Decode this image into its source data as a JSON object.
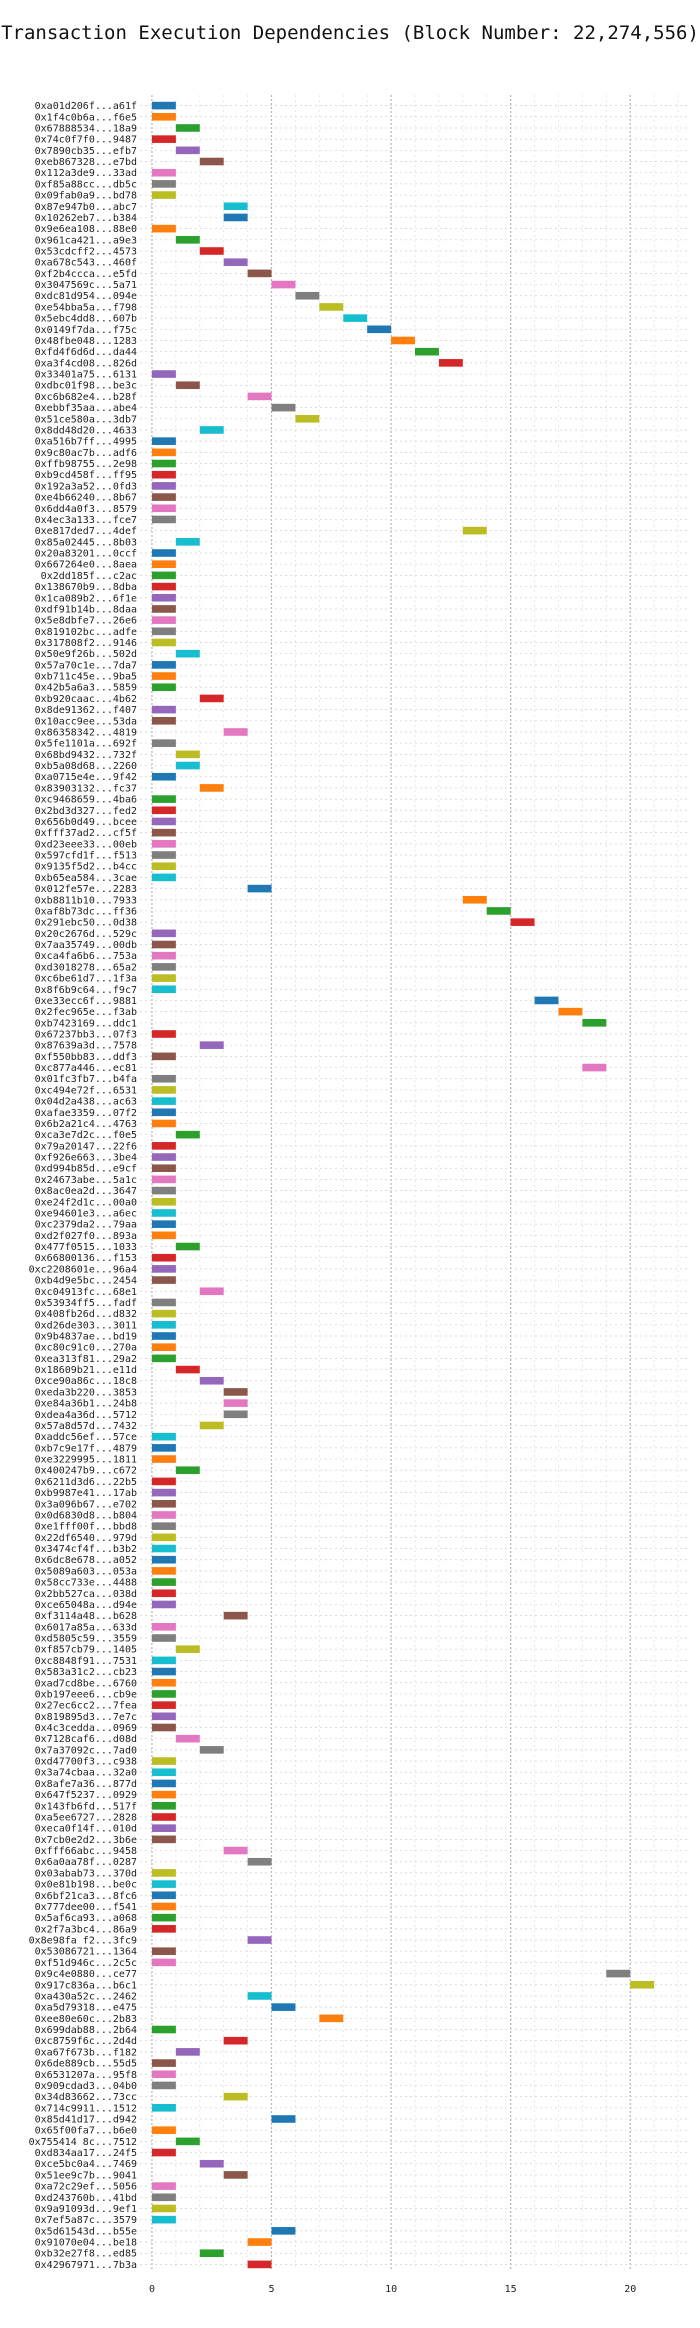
{
  "chart_data": {
    "type": "bar",
    "orientation": "horizontal-gantt",
    "title": "Transaction Execution Dependencies (Block Number: 22,274,556)",
    "xlim": [
      -0.5,
      22.5
    ],
    "xticks": [
      0,
      5,
      10,
      15,
      20
    ],
    "grid": true,
    "colors": [
      "#1f77b4",
      "#ff7f0e",
      "#2ca02c",
      "#d62728",
      "#9467bd",
      "#8c564b",
      "#e377c2",
      "#7f7f7f",
      "#bcbd22",
      "#17becf"
    ],
    "transactions": [
      {
        "label": "0xa01d206f...a61f",
        "start": 0
      },
      {
        "label": "0x1f4c0b6a...f6e5",
        "start": 0
      },
      {
        "label": "0x67888534...18a9",
        "start": 1
      },
      {
        "label": "0x74c0f7f0...9487",
        "start": 0
      },
      {
        "label": "0x7890cb35...efb7",
        "start": 1
      },
      {
        "label": "0xeb867328...e7bd",
        "start": 2
      },
      {
        "label": "0x112a3de9...33ad",
        "start": 0
      },
      {
        "label": "0xf85a88cc...db5c",
        "start": 0
      },
      {
        "label": "0x09fab0a9...bd78",
        "start": 0
      },
      {
        "label": "0x87e947b0...abc7",
        "start": 3
      },
      {
        "label": "0x10262eb7...b384",
        "start": 3
      },
      {
        "label": "0x9e6ea108...88e0",
        "start": 0
      },
      {
        "label": "0x961ca421...a9e3",
        "start": 1
      },
      {
        "label": "0x53cdcff2...4573",
        "start": 2
      },
      {
        "label": "0xa678c543...460f",
        "start": 3
      },
      {
        "label": "0xf2b4ccca...e5fd",
        "start": 4
      },
      {
        "label": "0x3047569c...5a71",
        "start": 5
      },
      {
        "label": "0xdc81d954...094e",
        "start": 6
      },
      {
        "label": "0xe54bba5a...f798",
        "start": 7
      },
      {
        "label": "0x5ebc4dd8...607b",
        "start": 8
      },
      {
        "label": "0x0149f7da...f75c",
        "start": 9
      },
      {
        "label": "0x48fbe048...1283",
        "start": 10
      },
      {
        "label": "0xfd4f6d6d...da44",
        "start": 11
      },
      {
        "label": "0xa3f4cd08...826d",
        "start": 12
      },
      {
        "label": "0x33401a75...6131",
        "start": 0
      },
      {
        "label": "0xdbc01f98...be3c",
        "start": 1
      },
      {
        "label": "0xc6b682e4...b28f",
        "start": 4
      },
      {
        "label": "0xebbf35aa...abe4",
        "start": 5
      },
      {
        "label": "0x51ce580a...3db7",
        "start": 6
      },
      {
        "label": "0x8dd48d20...4633",
        "start": 2
      },
      {
        "label": "0xa516b7ff...4995",
        "start": 0
      },
      {
        "label": "0x9c80ac7b...adf6",
        "start": 0
      },
      {
        "label": "0xffb98755...2e98",
        "start": 0
      },
      {
        "label": "0xb9cd458f...ff95",
        "start": 0
      },
      {
        "label": "0x192a3a52...0fd3",
        "start": 0
      },
      {
        "label": "0xe4b66240...8b67",
        "start": 0
      },
      {
        "label": "0x6dd4a0f3...8579",
        "start": 0
      },
      {
        "label": "0x4ec3a133...fce7",
        "start": 0
      },
      {
        "label": "0xe817ded7...4def",
        "start": 13
      },
      {
        "label": "0x85a02445...8b03",
        "start": 1
      },
      {
        "label": "0x20a83201...0ccf",
        "start": 0
      },
      {
        "label": "0x667264e0...8aea",
        "start": 0
      },
      {
        "label": "0x2dd185f...c2ac",
        "start": 0
      },
      {
        "label": "0x138670b9...8dba",
        "start": 0
      },
      {
        "label": "0x1ca089b2...6f1e",
        "start": 0
      },
      {
        "label": "0xdf91b14b...8daa",
        "start": 0
      },
      {
        "label": "0x5e8dbfe7...26e6",
        "start": 0
      },
      {
        "label": "0x819102bc...adfe",
        "start": 0
      },
      {
        "label": "0x317808f2...9146",
        "start": 0
      },
      {
        "label": "0x50e9f26b...502d",
        "start": 1
      },
      {
        "label": "0x57a70c1e...7da7",
        "start": 0
      },
      {
        "label": "0xb711c45e...9ba5",
        "start": 0
      },
      {
        "label": "0x42b5a6a3...5859",
        "start": 0
      },
      {
        "label": "0xb920caac...4b62",
        "start": 2
      },
      {
        "label": "0x8de91362...f407",
        "start": 0
      },
      {
        "label": "0x10acc9ee...53da",
        "start": 0
      },
      {
        "label": "0x86358342...4819",
        "start": 3
      },
      {
        "label": "0x5fe1101a...692f",
        "start": 0
      },
      {
        "label": "0x68bd9432...732f",
        "start": 1
      },
      {
        "label": "0xb5a08d68...2260",
        "start": 1
      },
      {
        "label": "0xa0715e4e...9f42",
        "start": 0
      },
      {
        "label": "0x83903132...fc37",
        "start": 2
      },
      {
        "label": "0xc9468659...4ba6",
        "start": 0
      },
      {
        "label": "0x2bd3d327...fed2",
        "start": 0
      },
      {
        "label": "0x656b0d49...bcee",
        "start": 0
      },
      {
        "label": "0xfff37ad2...cf5f",
        "start": 0
      },
      {
        "label": "0xd23eee33...00eb",
        "start": 0
      },
      {
        "label": "0x597cfd1f...f513",
        "start": 0
      },
      {
        "label": "0x9135f5d2...b4cc",
        "start": 0
      },
      {
        "label": "0xb65ea584...3cae",
        "start": 0
      },
      {
        "label": "0x012fe57e...2283",
        "start": 4
      },
      {
        "label": "0xb8811b10...7933",
        "start": 13
      },
      {
        "label": "0xaf8b73dc...ff36",
        "start": 14
      },
      {
        "label": "0x291ebc50...0d38",
        "start": 15
      },
      {
        "label": "0x20c2676d...529c",
        "start": 0
      },
      {
        "label": "0x7aa35749...00db",
        "start": 0
      },
      {
        "label": "0xca4fa6b6...753a",
        "start": 0
      },
      {
        "label": "0xd3018278...65a2",
        "start": 0
      },
      {
        "label": "0xc6be61d7...1f3a",
        "start": 0
      },
      {
        "label": "0x8f6b9c64...f9c7",
        "start": 0
      },
      {
        "label": "0xe33ecc6f...9881",
        "start": 16
      },
      {
        "label": "0x2fec965e...f3ab",
        "start": 17
      },
      {
        "label": "0xb7423169...ddc1",
        "start": 18
      },
      {
        "label": "0x67237bb3...07f3",
        "start": 0
      },
      {
        "label": "0x87639a3d...7578",
        "start": 2
      },
      {
        "label": "0xf550bb83...ddf3",
        "start": 0
      },
      {
        "label": "0xc877a446...ec81",
        "start": 18
      },
      {
        "label": "0x01fc3fb7...b4fa",
        "start": 0
      },
      {
        "label": "0xc494e72f...6531",
        "start": 0
      },
      {
        "label": "0x04d2a438...ac63",
        "start": 0
      },
      {
        "label": "0xafae3359...07f2",
        "start": 0
      },
      {
        "label": "0x6b2a21c4...4763",
        "start": 0
      },
      {
        "label": "0xca3e7d2c...f0e5",
        "start": 1
      },
      {
        "label": "0x79a20147...22f6",
        "start": 0
      },
      {
        "label": "0xf926e663...3be4",
        "start": 0
      },
      {
        "label": "0xd994b85d...e9cf",
        "start": 0
      },
      {
        "label": "0x24673abe...5a1c",
        "start": 0
      },
      {
        "label": "0x8ac0ea2d...3647",
        "start": 0
      },
      {
        "label": "0xe24f2d1c...00a0",
        "start": 0
      },
      {
        "label": "0xe94601e3...a6ec",
        "start": 0
      },
      {
        "label": "0xc2379da2...79aa",
        "start": 0
      },
      {
        "label": "0xd2f027f0...893a",
        "start": 0
      },
      {
        "label": "0x477f0515...1033",
        "start": 1
      },
      {
        "label": "0x66800136...f153",
        "start": 0
      },
      {
        "label": "0xc2208601e...96a4",
        "start": 0
      },
      {
        "label": "0xb4d9e5bc...2454",
        "start": 0
      },
      {
        "label": "0xc04913fc...68e1",
        "start": 2
      },
      {
        "label": "0x53934ff5...fadf",
        "start": 0
      },
      {
        "label": "0x408fb26d...d832",
        "start": 0
      },
      {
        "label": "0xd26de303...3011",
        "start": 0
      },
      {
        "label": "0x9b4837ae...bd19",
        "start": 0
      },
      {
        "label": "0xc80c91c0...270a",
        "start": 0
      },
      {
        "label": "0xea313f81...29a2",
        "start": 0
      },
      {
        "label": "0x18609b21...e11d",
        "start": 1
      },
      {
        "label": "0xce90a86c...18c8",
        "start": 2
      },
      {
        "label": "0xeda3b220...3853",
        "start": 3
      },
      {
        "label": "0xe84a36b1...24b8",
        "start": 3
      },
      {
        "label": "0xdea4a36d...5712",
        "start": 3
      },
      {
        "label": "0x57a8d57d...7432",
        "start": 2
      },
      {
        "label": "0xaddc56ef...57ce",
        "start": 0
      },
      {
        "label": "0xb7c9e17f...4879",
        "start": 0
      },
      {
        "label": "0xe3229995...1811",
        "start": 0
      },
      {
        "label": "0x400247b9...c672",
        "start": 1
      },
      {
        "label": "0x6211d3d6...22b5",
        "start": 0
      },
      {
        "label": "0xb9987e41...17ab",
        "start": 0
      },
      {
        "label": "0x3a096b67...e702",
        "start": 0
      },
      {
        "label": "0x0d6830d8...b804",
        "start": 0
      },
      {
        "label": "0xe1fff00f...bbd8",
        "start": 0
      },
      {
        "label": "0x22df6540...979d",
        "start": 0
      },
      {
        "label": "0x3474cf4f...b3b2",
        "start": 0
      },
      {
        "label": "0x6dc8e678...a052",
        "start": 0
      },
      {
        "label": "0x5089a603...053a",
        "start": 0
      },
      {
        "label": "0x58cc733e...4488",
        "start": 0
      },
      {
        "label": "0x2bb527ca...038d",
        "start": 0
      },
      {
        "label": "0xce65048a...d94e",
        "start": 0
      },
      {
        "label": "0xf3114a48...b628",
        "start": 3
      },
      {
        "label": "0x6017a85a...633d",
        "start": 0
      },
      {
        "label": "0xd5805c59...3559",
        "start": 0
      },
      {
        "label": "0xf857cb79...1405",
        "start": 1
      },
      {
        "label": "0xc8848f91...7531",
        "start": 0
      },
      {
        "label": "0x583a31c2...cb23",
        "start": 0
      },
      {
        "label": "0xad7cd8be...6760",
        "start": 0
      },
      {
        "label": "0xb197eee6...cb9e",
        "start": 0
      },
      {
        "label": "0x27ec6cc2...7fea",
        "start": 0
      },
      {
        "label": "0x819895d3...7e7c",
        "start": 0
      },
      {
        "label": "0x4c3cedda...0969",
        "start": 0
      },
      {
        "label": "0x7128caf6...d08d",
        "start": 1
      },
      {
        "label": "0x7a37092c...7ad0",
        "start": 2
      },
      {
        "label": "0xd47700f3...c938",
        "start": 0
      },
      {
        "label": "0x3a74cbaa...32a0",
        "start": 0
      },
      {
        "label": "0x8afe7a36...877d",
        "start": 0
      },
      {
        "label": "0x647f5237...0929",
        "start": 0
      },
      {
        "label": "0x143fb6fd...517f",
        "start": 0
      },
      {
        "label": "0xa5ee6727...2828",
        "start": 0
      },
      {
        "label": "0xeca0f14f...010d",
        "start": 0
      },
      {
        "label": "0x7cb0e2d2...3b6e",
        "start": 0
      },
      {
        "label": "0xfff66abc...9458",
        "start": 3
      },
      {
        "label": "0x6a0aa78f...0287",
        "start": 4
      },
      {
        "label": "0x03abab73...370d",
        "start": 0
      },
      {
        "label": "0x0e81b198...be0c",
        "start": 0
      },
      {
        "label": "0x6bf21ca3...8fc6",
        "start": 0
      },
      {
        "label": "0x777dee00...f541",
        "start": 0
      },
      {
        "label": "0x5af6ca93...a068",
        "start": 0
      },
      {
        "label": "0x2f7a3bc4...86a9",
        "start": 0
      },
      {
        "label": "0x8e98fa f2...3fc9",
        "start": 4
      },
      {
        "label": "0x53086721...1364",
        "start": 0
      },
      {
        "label": "0xf51d946c...2c5c",
        "start": 0
      },
      {
        "label": "0x9c4e0880...ce77",
        "start": 19
      },
      {
        "label": "0x917c836a...b6c1",
        "start": 20
      },
      {
        "label": "0xa430a52c...2462",
        "start": 4
      },
      {
        "label": "0xa5d79318...e475",
        "start": 5
      },
      {
        "label": "0xee80e60c...2b83",
        "start": 7
      },
      {
        "label": "0x699dab88...2b64",
        "start": 0
      },
      {
        "label": "0xc8759f6c...2d4d",
        "start": 3
      },
      {
        "label": "0xa67f673b...f182",
        "start": 1
      },
      {
        "label": "0x6de889cb...55d5",
        "start": 0
      },
      {
        "label": "0x6531207a...95f8",
        "start": 0
      },
      {
        "label": "0x909cdad3...04b0",
        "start": 0
      },
      {
        "label": "0x34d83662...73cc",
        "start": 3
      },
      {
        "label": "0x714c9911...1512",
        "start": 0
      },
      {
        "label": "0x85d41d17...d942",
        "start": 5
      },
      {
        "label": "0x65f00fa7...b6e0",
        "start": 0
      },
      {
        "label": "0x755414 8c...7512",
        "start": 1
      },
      {
        "label": "0xd834aa17...24f5",
        "start": 0
      },
      {
        "label": "0xce5bc0a4...7469",
        "start": 2
      },
      {
        "label": "0x51ee9c7b...9041",
        "start": 3
      },
      {
        "label": "0xa72c29ef...5056",
        "start": 0
      },
      {
        "label": "0xd243760b...41bd",
        "start": 0
      },
      {
        "label": "0x9a91093d...9ef1",
        "start": 0
      },
      {
        "label": "0x7ef5a87c...3579",
        "start": 0
      },
      {
        "label": "0x5d61543d...b55e",
        "start": 5
      },
      {
        "label": "0x91070e04...be18",
        "start": 4
      },
      {
        "label": "0xb32e27f8...ed85",
        "start": 2
      },
      {
        "label": "0x42967971...7b3a",
        "start": 4
      }
    ]
  }
}
